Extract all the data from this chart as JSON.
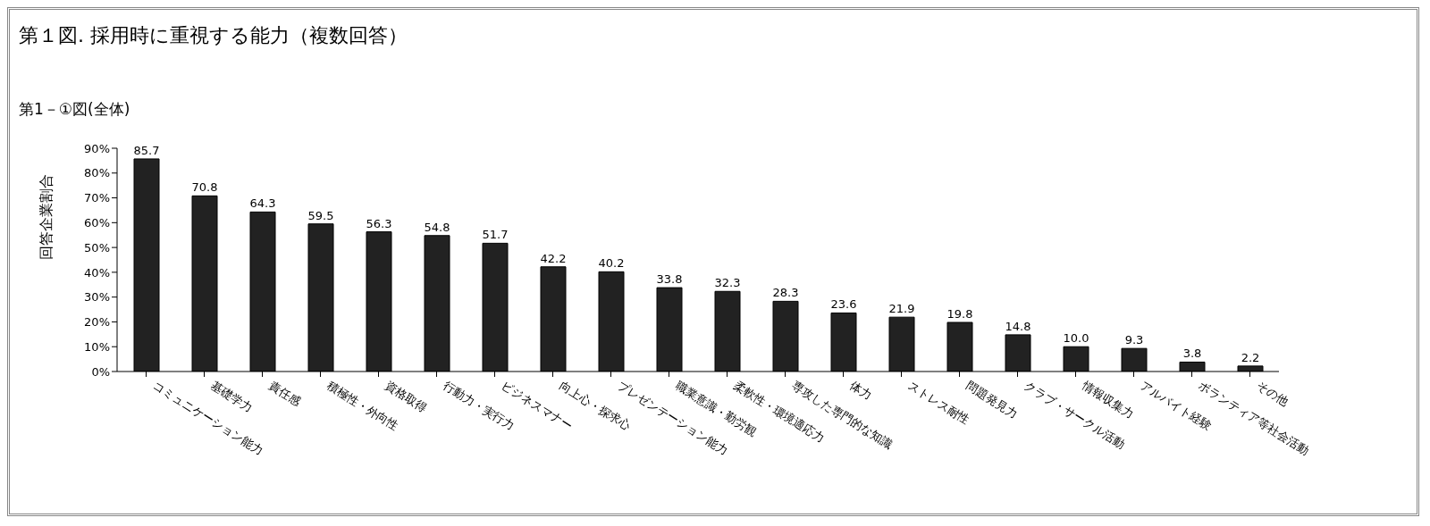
{
  "chart_data": {
    "type": "bar",
    "title": "第１図.  採用時に重視する能力（複数回答）",
    "subtitle": "第1－①図(全体)",
    "ylabel": "回答企業割合",
    "categories": [
      "コミュニケーション能力",
      "基礎学力",
      "責任感",
      "積極性・外向性",
      "資格取得",
      "行動力・実行力",
      "ビジネスマナー",
      "向上心・探求心",
      "プレゼンテーション能力",
      "職業意識・勤労観",
      "柔軟性・環境適応力",
      "専攻した専門的な知識",
      "体力",
      "ストレス耐性",
      "問題発見力",
      "クラブ・サークル活動",
      "情報収集力",
      "アルバイト経験",
      "ボランティア等社会活動",
      "その他"
    ],
    "values": [
      85.7,
      70.8,
      64.3,
      59.5,
      56.3,
      54.8,
      51.7,
      42.2,
      40.2,
      33.8,
      32.3,
      28.3,
      23.6,
      21.9,
      19.8,
      14.8,
      10.0,
      9.3,
      3.8,
      2.2
    ],
    "value_labels": [
      "85.7",
      "70.8",
      "64.3",
      "59.5",
      "56.3",
      "54.8",
      "51.7",
      "42.2",
      "40.2",
      "33.8",
      "32.3",
      "28.3",
      "23.6",
      "21.9",
      "19.8",
      "14.8",
      "10.0",
      "9.3",
      "3.8",
      "2.2"
    ],
    "color": "#222222",
    "ylim": [
      0,
      90
    ],
    "yticks": [
      {
        "value": 0,
        "label": "0%"
      },
      {
        "value": 10,
        "label": "10%"
      },
      {
        "value": 20,
        "label": "20%"
      },
      {
        "value": 30,
        "label": "30%"
      },
      {
        "value": 40,
        "label": "40%"
      },
      {
        "value": 50,
        "label": "50%"
      },
      {
        "value": 60,
        "label": "60%"
      },
      {
        "value": 70,
        "label": "70%"
      },
      {
        "value": 80,
        "label": "80%"
      },
      {
        "value": 90,
        "label": "90%"
      }
    ],
    "grid": false,
    "legend": false
  }
}
